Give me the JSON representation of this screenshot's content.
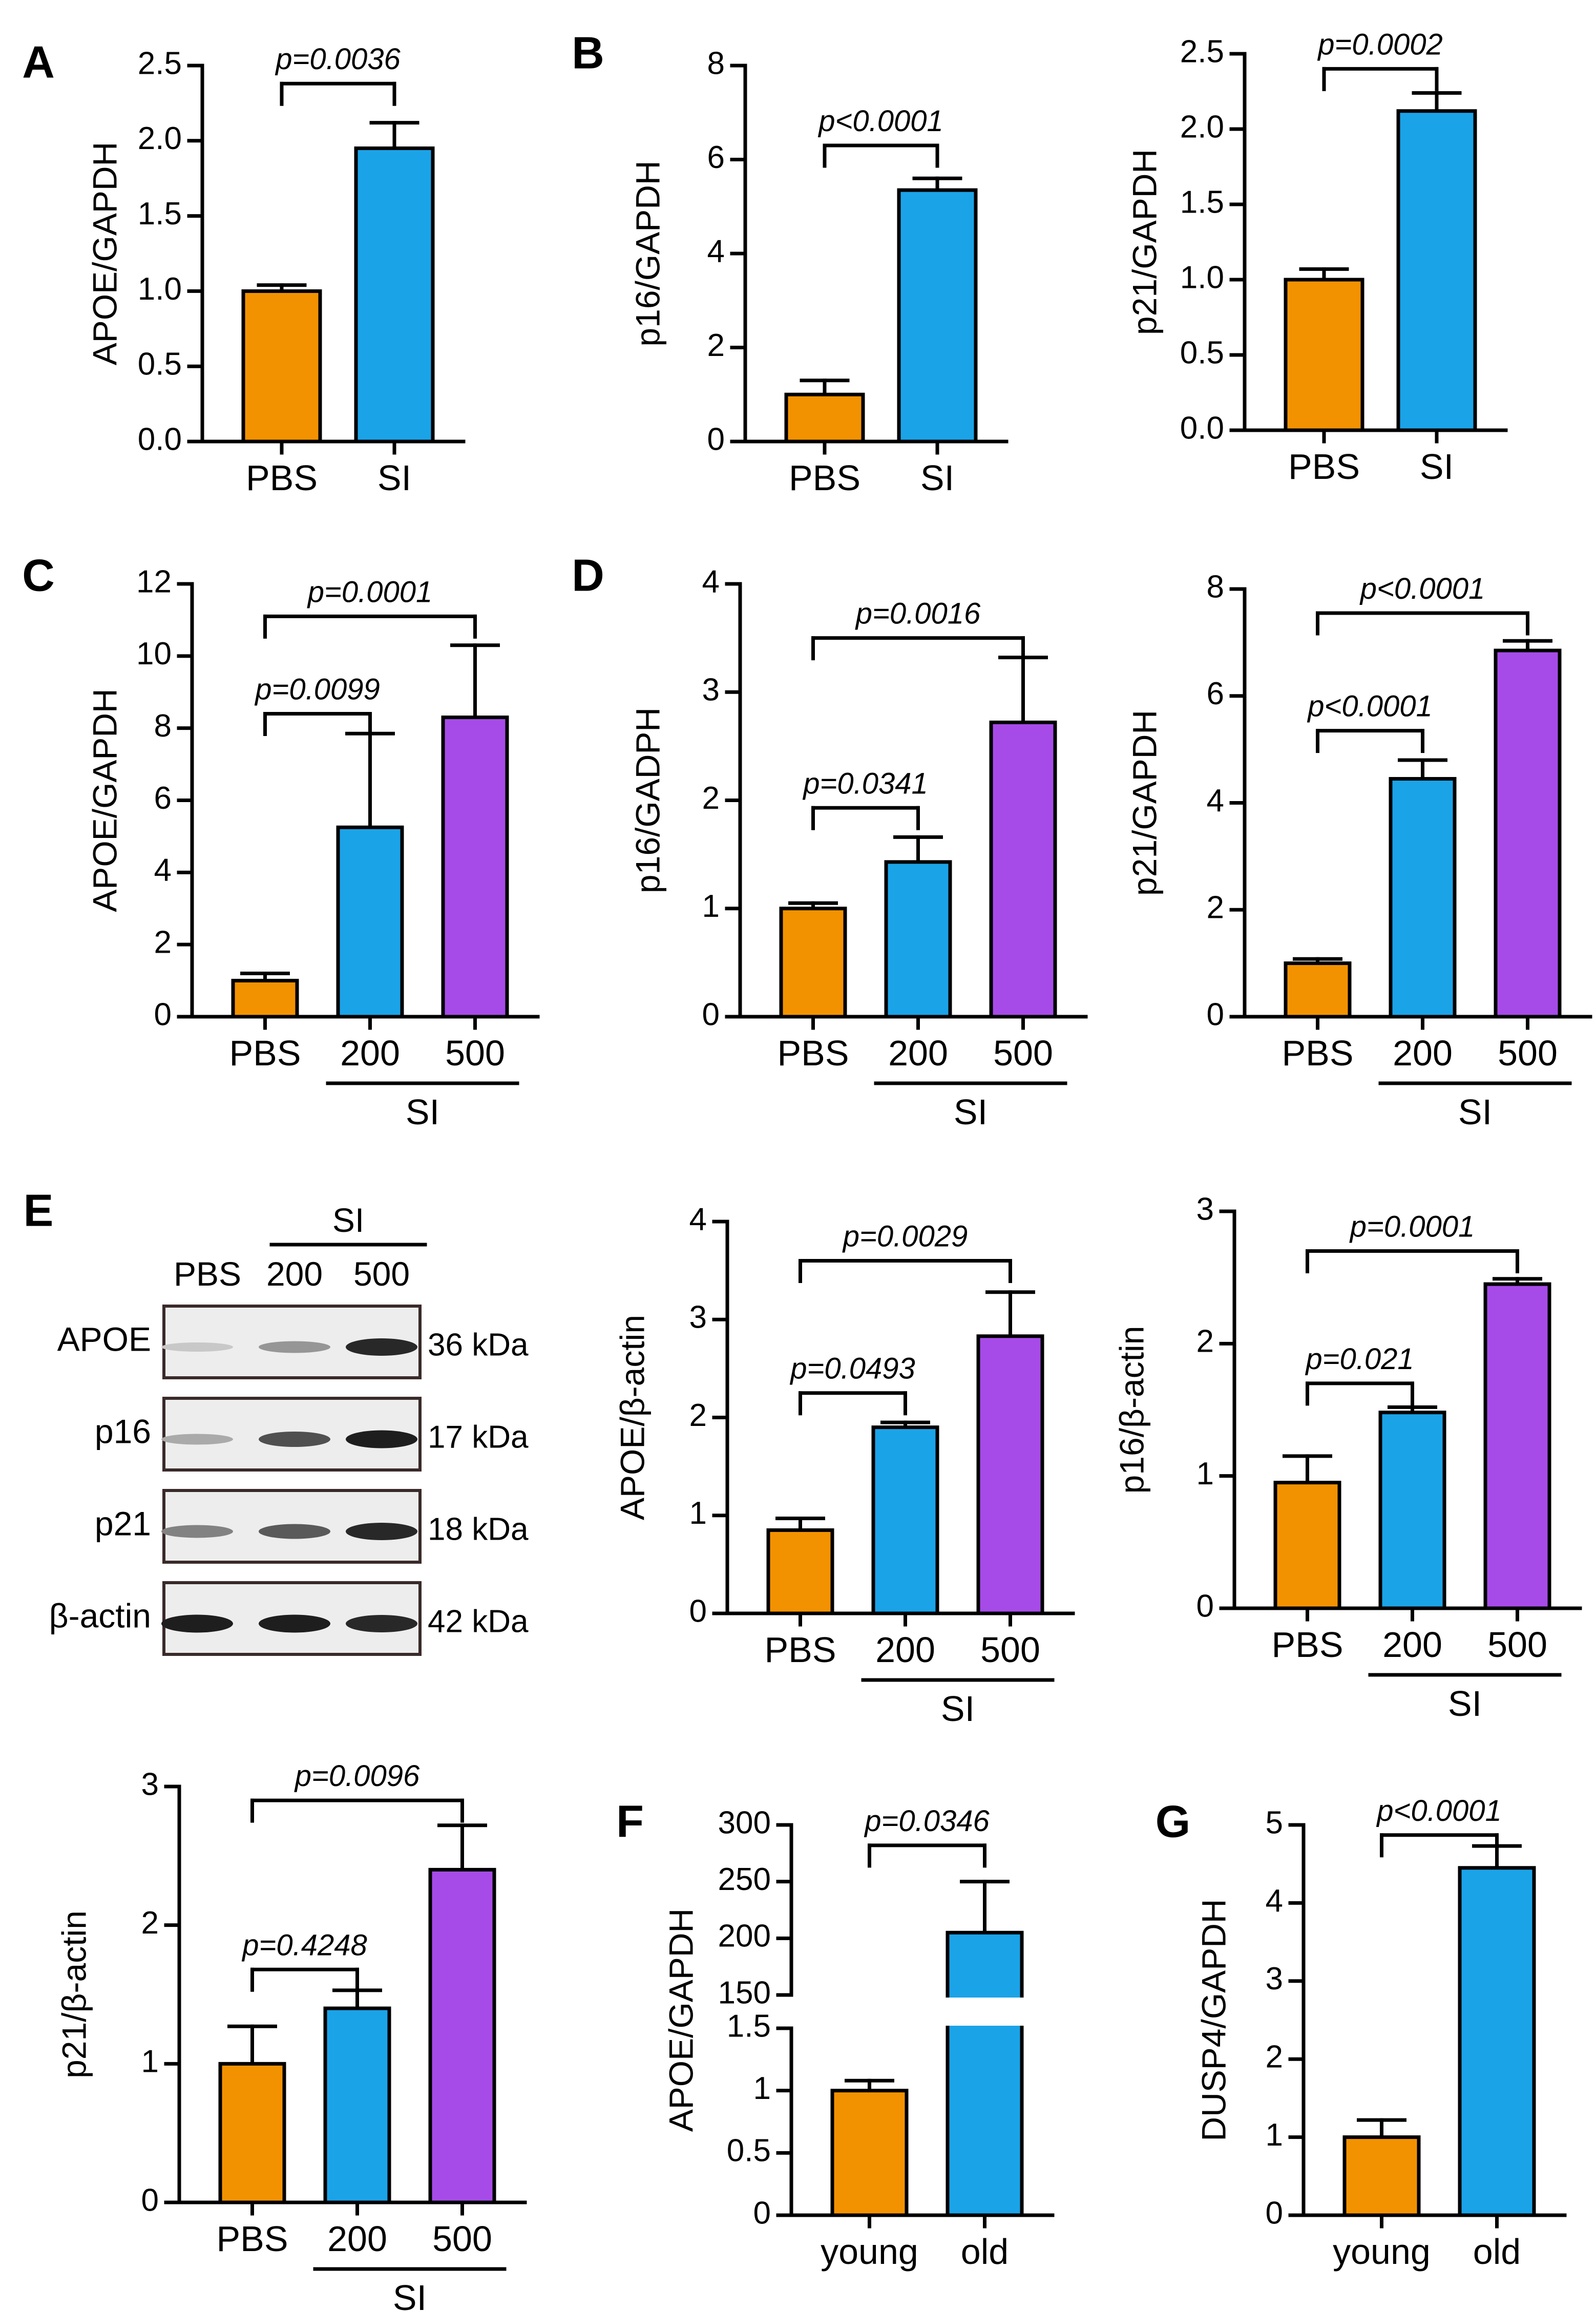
{
  "colors": {
    "pbs": "#f39200",
    "si200": "#1ba3e8",
    "si500": "#a64be8",
    "axis": "#000000"
  },
  "panel_letters": [
    "A",
    "B",
    "C",
    "D",
    "E",
    "F",
    "G"
  ],
  "chart_data": [
    {
      "id": "A1",
      "letter": "A",
      "type": "bar",
      "ylabel": "APOE/GAPDH",
      "ylim": [
        0,
        2.5
      ],
      "yticks": [
        0,
        0.5,
        1.0,
        1.5,
        2.0,
        2.5
      ],
      "ytick_labels": [
        "0.0",
        "0.5",
        "1.0",
        "1.5",
        "2.0",
        "2.5"
      ],
      "categories": [
        "PBS",
        "SI"
      ],
      "values": [
        1.0,
        1.95
      ],
      "errors": [
        0.04,
        0.17
      ],
      "colors": [
        "pbs",
        "si200"
      ],
      "sig": [
        {
          "from": 0,
          "to": 1,
          "text": "p=0.0036",
          "y": 2.38
        }
      ]
    },
    {
      "id": "B1",
      "letter": "B",
      "type": "bar",
      "ylabel": "p16/GAPDH",
      "ylim": [
        0,
        8
      ],
      "yticks": [
        0,
        2,
        4,
        6,
        8
      ],
      "ytick_labels": [
        "0",
        "2",
        "4",
        "6",
        "8"
      ],
      "categories": [
        "PBS",
        "SI"
      ],
      "values": [
        1.0,
        5.35
      ],
      "errors": [
        0.3,
        0.25
      ],
      "colors": [
        "pbs",
        "si200"
      ],
      "sig": [
        {
          "from": 0,
          "to": 1,
          "text": "p<0.0001",
          "y": 6.3
        }
      ]
    },
    {
      "id": "B2",
      "type": "bar",
      "ylabel": "p21/GAPDH",
      "ylim": [
        0,
        2.5
      ],
      "yticks": [
        0,
        0.5,
        1.0,
        1.5,
        2.0,
        2.5
      ],
      "ytick_labels": [
        "0.0",
        "0.5",
        "1.0",
        "1.5",
        "2.0",
        "2.5"
      ],
      "categories": [
        "PBS",
        "SI"
      ],
      "values": [
        1.0,
        2.12
      ],
      "errors": [
        0.07,
        0.12
      ],
      "colors": [
        "pbs",
        "si200"
      ],
      "sig": [
        {
          "from": 0,
          "to": 1,
          "text": "p=0.0002",
          "y": 2.4
        }
      ]
    },
    {
      "id": "C1",
      "letter": "C",
      "type": "bar",
      "ylabel": "APOE/GAPDH",
      "ylim": [
        0,
        12
      ],
      "yticks": [
        0,
        2,
        4,
        6,
        8,
        10,
        12
      ],
      "ytick_labels": [
        "0",
        "2",
        "4",
        "6",
        "8",
        "10",
        "12"
      ],
      "categories": [
        "PBS",
        "200",
        "500"
      ],
      "group_label": "SI",
      "values": [
        1.0,
        5.25,
        8.3
      ],
      "errors": [
        0.2,
        2.6,
        2.0
      ],
      "colors": [
        "pbs",
        "si200",
        "si500"
      ],
      "sig": [
        {
          "from": 0,
          "to": 1,
          "text": "p=0.0099",
          "y": 8.4
        },
        {
          "from": 0,
          "to": 2,
          "text": "p=0.0001",
          "y": 11.1
        }
      ]
    },
    {
      "id": "D1",
      "letter": "D",
      "type": "bar",
      "ylabel": "p16/GADPH",
      "ylim": [
        0,
        4
      ],
      "yticks": [
        0,
        1,
        2,
        3,
        4
      ],
      "ytick_labels": [
        "0",
        "1",
        "2",
        "3",
        "4"
      ],
      "categories": [
        "PBS",
        "200",
        "500"
      ],
      "group_label": "SI",
      "values": [
        1.0,
        1.43,
        2.72
      ],
      "errors": [
        0.05,
        0.23,
        0.6
      ],
      "colors": [
        "pbs",
        "si200",
        "si500"
      ],
      "sig": [
        {
          "from": 0,
          "to": 1,
          "text": "p=0.0341",
          "y": 1.93
        },
        {
          "from": 0,
          "to": 2,
          "text": "p=0.0016",
          "y": 3.5
        }
      ]
    },
    {
      "id": "D2",
      "type": "bar",
      "ylabel": "p21/GAPDH",
      "ylim": [
        0,
        8
      ],
      "yticks": [
        0,
        2,
        4,
        6,
        8
      ],
      "ytick_labels": [
        "0",
        "2",
        "4",
        "6",
        "8"
      ],
      "categories": [
        "PBS",
        "200",
        "500"
      ],
      "group_label": "SI",
      "values": [
        1.0,
        4.45,
        6.85
      ],
      "errors": [
        0.08,
        0.35,
        0.18
      ],
      "colors": [
        "pbs",
        "si200",
        "si500"
      ],
      "sig": [
        {
          "from": 0,
          "to": 1,
          "text": "p<0.0001",
          "y": 5.35
        },
        {
          "from": 0,
          "to": 2,
          "text": "p<0.0001",
          "y": 7.55
        }
      ]
    },
    {
      "id": "E2",
      "type": "bar",
      "ylabel": "APOE/β-actin",
      "ylim": [
        0,
        4
      ],
      "yticks": [
        0,
        1,
        2,
        3,
        4
      ],
      "ytick_labels": [
        "0",
        "1",
        "2",
        "3",
        "4"
      ],
      "categories": [
        "PBS",
        "200",
        "500"
      ],
      "group_label": "SI",
      "values": [
        0.85,
        1.9,
        2.83
      ],
      "errors": [
        0.12,
        0.05,
        0.45
      ],
      "colors": [
        "pbs",
        "si200",
        "si500"
      ],
      "sig": [
        {
          "from": 0,
          "to": 1,
          "text": "p=0.0493",
          "y": 2.25
        },
        {
          "from": 0,
          "to": 2,
          "text": "p=0.0029",
          "y": 3.6
        }
      ]
    },
    {
      "id": "E3",
      "type": "bar",
      "ylabel": "p16/β-actin",
      "ylim": [
        0,
        3
      ],
      "yticks": [
        0,
        1,
        2,
        3
      ],
      "ytick_labels": [
        "0",
        "1",
        "2",
        "3"
      ],
      "categories": [
        "PBS",
        "200",
        "500"
      ],
      "group_label": "SI",
      "values": [
        0.95,
        1.48,
        2.45
      ],
      "errors": [
        0.2,
        0.04,
        0.04
      ],
      "colors": [
        "pbs",
        "si200",
        "si500"
      ],
      "sig": [
        {
          "from": 0,
          "to": 1,
          "text": "p=0.021",
          "y": 1.7
        },
        {
          "from": 0,
          "to": 2,
          "text": "p=0.0001",
          "y": 2.7
        }
      ]
    },
    {
      "id": "E4",
      "type": "bar",
      "ylabel": "p21/β-actin",
      "ylim": [
        0,
        3
      ],
      "yticks": [
        0,
        1,
        2,
        3
      ],
      "ytick_labels": [
        "0",
        "1",
        "2",
        "3"
      ],
      "categories": [
        "PBS",
        "200",
        "500"
      ],
      "group_label": "SI",
      "values": [
        1.0,
        1.4,
        2.4
      ],
      "errors": [
        0.27,
        0.13,
        0.32
      ],
      "colors": [
        "pbs",
        "si200",
        "si500"
      ],
      "sig": [
        {
          "from": 0,
          "to": 1,
          "text": "p=0.4248",
          "y": 1.68
        },
        {
          "from": 0,
          "to": 2,
          "text": "p=0.0096",
          "y": 2.9
        }
      ]
    },
    {
      "id": "F1",
      "letter": "F",
      "type": "bar",
      "broken_axis": true,
      "ylabel": "APOE/GAPDH",
      "lower_ylim": [
        0,
        1.5
      ],
      "lower_yticks": [
        0,
        0.5,
        1,
        1.5
      ],
      "lower_ytick_labels": [
        "0",
        "0.5",
        "1",
        "1.5"
      ],
      "upper_ylim": [
        150,
        300
      ],
      "upper_yticks": [
        150,
        200,
        250,
        300
      ],
      "upper_ytick_labels": [
        "150",
        "200",
        "250",
        "300"
      ],
      "categories": [
        "young",
        "old"
      ],
      "values": [
        1.0,
        205
      ],
      "errors": [
        0.08,
        45
      ],
      "colors": [
        "pbs",
        "si200"
      ],
      "sig": [
        {
          "from": 0,
          "to": 1,
          "text": "p=0.0346",
          "y": 282
        }
      ]
    },
    {
      "id": "G1",
      "letter": "G",
      "type": "bar",
      "ylabel": "DUSP4/GAPDH",
      "ylim": [
        0,
        5
      ],
      "yticks": [
        0,
        1,
        2,
        3,
        4,
        5
      ],
      "ytick_labels": [
        "0",
        "1",
        "2",
        "3",
        "4",
        "5"
      ],
      "categories": [
        "young",
        "old"
      ],
      "values": [
        1.0,
        4.45
      ],
      "errors": [
        0.22,
        0.28
      ],
      "colors": [
        "pbs",
        "si200"
      ],
      "sig": [
        {
          "from": 0,
          "to": 1,
          "text": "p<0.0001",
          "y": 4.87
        }
      ]
    }
  ],
  "western_blot": {
    "group_label": "SI",
    "lane_labels": [
      "PBS",
      "200",
      "500"
    ],
    "rows": [
      {
        "protein": "APOE",
        "size": "36 kDa",
        "bands": [
          0.1,
          0.35,
          0.9
        ]
      },
      {
        "protein": "p16",
        "size": "17 kDa",
        "bands": [
          0.25,
          0.7,
          0.95
        ]
      },
      {
        "protein": "p21",
        "size": "18 kDa",
        "bands": [
          0.45,
          0.65,
          0.9
        ]
      },
      {
        "protein": "β-actin",
        "size": "42 kDa",
        "bands": [
          0.95,
          0.95,
          0.9
        ]
      }
    ]
  }
}
